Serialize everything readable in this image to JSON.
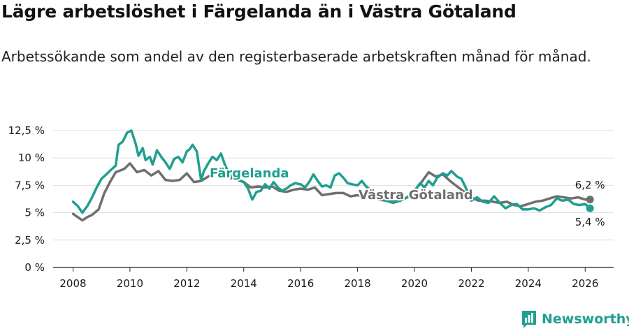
{
  "header": {
    "title": "Lägre arbetslöshet i Färgelanda än i Västra Götaland",
    "subtitle": "Arbetssökande som andel av den registerbaserade arbetskraften månad för månad."
  },
  "brand": {
    "name": "Newsworthy",
    "icon": "newsworthy-logo-icon",
    "color": "#1fa08f"
  },
  "chart_data": {
    "type": "line",
    "title": "Lägre arbetslöshet i Färgelanda än i Västra Götaland",
    "subtitle": "Arbetssökande som andel av den registerbaserade arbetskraften månad för månad.",
    "xlabel": "",
    "ylabel": "",
    "xlim": [
      2007.3,
      2027.0
    ],
    "ylim": [
      0,
      12.5
    ],
    "y_ticks": [
      0,
      2.5,
      5,
      7.5,
      10,
      12.5
    ],
    "y_tick_labels": [
      "0 %",
      "2,5 %",
      "5 %",
      "7,5 %",
      "10 %",
      "12,5 %"
    ],
    "x_ticks": [
      2008,
      2010,
      2012,
      2014,
      2016,
      2018,
      2020,
      2022,
      2024,
      2026
    ],
    "x_tick_labels": [
      "2008",
      "2010",
      "2012",
      "2014",
      "2016",
      "2018",
      "2020",
      "2022",
      "2024",
      "2026"
    ],
    "grid": true,
    "series": [
      {
        "name": "Västra Götaland",
        "color": "#6f6f6f",
        "x": [
          2008.0,
          2008.33,
          2008.5,
          2008.67,
          2008.9,
          2009.1,
          2009.3,
          2009.5,
          2009.8,
          2010.0,
          2010.25,
          2010.5,
          2010.75,
          2011.0,
          2011.25,
          2011.5,
          2011.75,
          2012.0,
          2012.25,
          2012.5,
          2012.75,
          2013.0,
          2013.25,
          2013.5,
          2014.0,
          2014.25,
          2014.5,
          2014.75,
          2015.0,
          2015.25,
          2015.5,
          2015.75,
          2016.0,
          2016.25,
          2016.5,
          2016.75,
          2017.0,
          2017.25,
          2017.5,
          2017.75,
          2018.0,
          2018.25,
          2018.5,
          2018.75,
          2019.0,
          2019.25,
          2019.5,
          2019.75,
          2020.0,
          2020.25,
          2020.5,
          2020.75,
          2021.0,
          2021.25,
          2021.5,
          2021.75,
          2022.0,
          2022.25,
          2022.5,
          2022.75,
          2023.0,
          2023.25,
          2023.5,
          2023.75,
          2024.0,
          2024.25,
          2024.5,
          2024.75,
          2025.0,
          2025.25,
          2025.5,
          2025.75,
          2026.0,
          2026.17
        ],
        "y": [
          4.9,
          4.3,
          4.6,
          4.8,
          5.3,
          6.8,
          7.8,
          8.7,
          9.0,
          9.5,
          8.7,
          8.9,
          8.4,
          8.8,
          8.0,
          7.9,
          8.0,
          8.6,
          7.8,
          7.9,
          8.3,
          8.6,
          8.4,
          8.2,
          7.8,
          7.3,
          7.4,
          7.3,
          7.4,
          7.0,
          6.9,
          7.1,
          7.2,
          7.1,
          7.3,
          6.6,
          6.7,
          6.8,
          6.8,
          6.5,
          6.6,
          6.5,
          6.4,
          6.2,
          6.1,
          6.0,
          6.1,
          6.4,
          7.0,
          7.8,
          8.7,
          8.3,
          8.5,
          7.9,
          7.4,
          6.9,
          6.4,
          6.1,
          6.1,
          6.0,
          5.9,
          6.0,
          5.7,
          5.6,
          5.8,
          6.0,
          6.1,
          6.3,
          6.5,
          6.4,
          6.3,
          6.4,
          6.2,
          6.2
        ],
        "end_value": 6.2,
        "end_label": "6,2 %"
      },
      {
        "name": "Färgelanda",
        "color": "#1fa08f",
        "x": [
          2008.0,
          2008.17,
          2008.33,
          2008.5,
          2008.67,
          2008.83,
          2009.0,
          2009.17,
          2009.33,
          2009.5,
          2009.6,
          2009.75,
          2009.9,
          2010.05,
          2010.2,
          2010.3,
          2010.45,
          2010.55,
          2010.7,
          2010.8,
          2010.95,
          2011.1,
          2011.25,
          2011.4,
          2011.55,
          2011.7,
          2011.85,
          2012.0,
          2012.1,
          2012.2,
          2012.35,
          2012.5,
          2012.6,
          2012.75,
          2012.9,
          2013.05,
          2013.2,
          2013.35,
          2013.5,
          2013.65,
          2013.8,
          2014.0,
          2014.15,
          2014.3,
          2014.45,
          2014.6,
          2014.75,
          2014.9,
          2015.05,
          2015.2,
          2015.35,
          2015.5,
          2015.65,
          2015.8,
          2016.0,
          2016.15,
          2016.3,
          2016.45,
          2016.6,
          2016.75,
          2016.9,
          2017.05,
          2017.2,
          2017.35,
          2017.5,
          2017.65,
          2017.8,
          2018.0,
          2018.15,
          2018.3,
          2018.5,
          2018.75,
          2019.0,
          2019.25,
          2019.5,
          2019.75,
          2020.0,
          2020.2,
          2020.35,
          2020.5,
          2020.65,
          2020.8,
          2021.0,
          2021.15,
          2021.3,
          2021.5,
          2021.65,
          2021.8,
          2022.0,
          2022.2,
          2022.4,
          2022.6,
          2022.8,
          2023.0,
          2023.2,
          2023.4,
          2023.6,
          2023.8,
          2024.0,
          2024.2,
          2024.4,
          2024.6,
          2024.8,
          2025.0,
          2025.2,
          2025.4,
          2025.6,
          2025.8,
          2026.0,
          2026.17
        ],
        "y": [
          6.0,
          5.6,
          5.0,
          5.6,
          6.4,
          7.3,
          8.1,
          8.5,
          8.9,
          9.3,
          11.2,
          11.5,
          12.3,
          12.5,
          11.3,
          10.2,
          10.9,
          9.8,
          10.1,
          9.4,
          10.7,
          10.1,
          9.6,
          9.0,
          9.9,
          10.1,
          9.6,
          10.6,
          10.8,
          11.2,
          10.6,
          8.0,
          8.8,
          9.5,
          10.1,
          9.8,
          10.4,
          9.3,
          8.5,
          8.3,
          8.0,
          7.8,
          7.2,
          6.2,
          6.9,
          7.0,
          7.6,
          7.2,
          7.8,
          7.3,
          7.0,
          7.2,
          7.5,
          7.7,
          7.6,
          7.3,
          7.8,
          8.5,
          7.9,
          7.4,
          7.5,
          7.3,
          8.4,
          8.6,
          8.2,
          7.7,
          7.6,
          7.5,
          7.9,
          7.4,
          7.0,
          6.5,
          6.1,
          5.9,
          6.1,
          6.4,
          7.0,
          7.7,
          7.3,
          7.9,
          7.5,
          8.2,
          8.6,
          8.4,
          8.8,
          8.3,
          8.1,
          7.3,
          6.1,
          6.4,
          6.0,
          5.9,
          6.5,
          5.9,
          5.4,
          5.7,
          5.8,
          5.3,
          5.3,
          5.4,
          5.2,
          5.5,
          5.7,
          6.3,
          6.1,
          6.2,
          5.8,
          5.7,
          5.8,
          5.4
        ],
        "end_value": 5.4,
        "end_label": "5,4 %"
      }
    ]
  }
}
